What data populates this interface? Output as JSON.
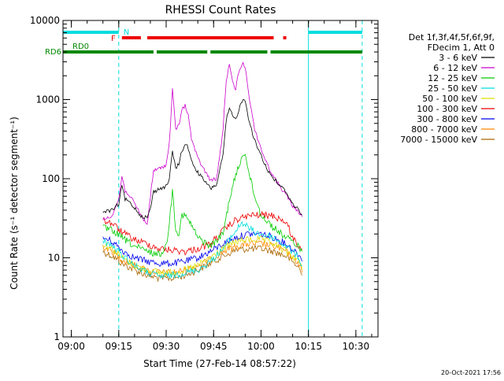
{
  "chart_data": {
    "type": "line",
    "title": "RHESSI Count Rates",
    "xlabel": "Start Time (27-Feb-14 08:57:22)",
    "ylabel": "Count Rate (s⁻¹ detector segment⁻¹)",
    "y_scale": "log",
    "xlim": [
      "08:57:22",
      "10:37:00"
    ],
    "ylim": [
      1,
      10000
    ],
    "x_ticks": [
      "09:00",
      "09:15",
      "09:30",
      "09:45",
      "10:00",
      "10:15",
      "10:30"
    ],
    "y_ticks": [
      "1",
      "10",
      "100",
      "1000",
      "10000"
    ],
    "grid": false,
    "legend": {
      "placement": "right",
      "header": [
        "Det 1f,3f,4f,5f,6f,9f,",
        "FDecim 1, Att 0"
      ]
    },
    "series": [
      {
        "name": "3 - 6 keV",
        "color": "#000000",
        "x": [
          "09:10",
          "09:13",
          "09:15",
          "09:16",
          "09:17",
          "09:18",
          "09:20",
          "09:22",
          "09:24",
          "09:25",
          "09:26",
          "09:28",
          "09:30",
          "09:31",
          "09:32",
          "09:33",
          "09:34",
          "09:35",
          "09:36",
          "09:37",
          "09:38",
          "09:40",
          "09:42",
          "09:44",
          "09:46",
          "09:48",
          "09:49",
          "09:50",
          "09:51",
          "09:52",
          "09:53",
          "09:54",
          "09:55",
          "09:56",
          "09:57",
          "09:58",
          "10:00",
          "10:02",
          "10:04",
          "10:06",
          "10:08",
          "10:10",
          "10:12",
          "10:13"
        ],
        "y": [
          38,
          40,
          48,
          82,
          55,
          52,
          43,
          34,
          32,
          42,
          68,
          75,
          80,
          100,
          220,
          135,
          155,
          225,
          275,
          245,
          165,
          120,
          95,
          75,
          85,
          200,
          540,
          790,
          610,
          560,
          760,
          950,
          1000,
          600,
          420,
          300,
          200,
          130,
          100,
          82,
          68,
          48,
          40,
          35
        ]
      },
      {
        "name": "6 - 12 keV",
        "color": "#cc00cc",
        "x": [
          "09:10",
          "09:13",
          "09:15",
          "09:16",
          "09:17",
          "09:18",
          "09:20",
          "09:22",
          "09:24",
          "09:25",
          "09:26",
          "09:28",
          "09:30",
          "09:31",
          "09:32",
          "09:33",
          "09:34",
          "09:35",
          "09:36",
          "09:37",
          "09:38",
          "09:40",
          "09:42",
          "09:44",
          "09:46",
          "09:48",
          "09:49",
          "09:50",
          "09:51",
          "09:52",
          "09:53",
          "09:54",
          "09:55",
          "09:56",
          "09:57",
          "09:58",
          "10:00",
          "10:02",
          "10:04",
          "10:06",
          "10:08",
          "10:10",
          "10:12",
          "10:13"
        ],
        "y": [
          30,
          35,
          55,
          108,
          70,
          65,
          48,
          35,
          26,
          60,
          125,
          135,
          150,
          280,
          1330,
          420,
          480,
          720,
          860,
          640,
          320,
          180,
          130,
          95,
          100,
          420,
          1800,
          2700,
          1640,
          1360,
          2280,
          2850,
          2650,
          1300,
          700,
          420,
          240,
          150,
          105,
          80,
          62,
          45,
          38,
          33
        ]
      },
      {
        "name": "12 - 25 keV",
        "color": "#00cc00",
        "x": [
          "09:10",
          "09:13",
          "09:16",
          "09:20",
          "09:24",
          "09:28",
          "09:30",
          "09:31",
          "09:32",
          "09:33",
          "09:34",
          "09:35",
          "09:36",
          "09:38",
          "09:40",
          "09:44",
          "09:48",
          "09:50",
          "09:52",
          "09:54",
          "09:55",
          "09:56",
          "09:58",
          "10:00",
          "10:04",
          "10:08",
          "10:12",
          "10:13"
        ],
        "y": [
          24,
          22,
          18,
          14,
          12,
          11,
          14,
          28,
          72,
          24,
          20,
          35,
          34,
          26,
          18,
          14,
          20,
          55,
          110,
          190,
          220,
          125,
          60,
          35,
          24,
          18,
          14,
          12
        ]
      },
      {
        "name": "25 - 50 keV",
        "color": "#00dddd",
        "x": [
          "09:10",
          "09:13",
          "09:16",
          "09:20",
          "09:24",
          "09:28",
          "09:32",
          "09:36",
          "09:40",
          "09:44",
          "09:48",
          "09:52",
          "09:54",
          "09:56",
          "09:58",
          "10:00",
          "10:04",
          "10:08",
          "10:12",
          "10:13"
        ],
        "y": [
          17,
          14,
          11,
          8,
          6.5,
          5.8,
          6,
          6.5,
          7,
          9,
          13,
          22,
          28,
          24,
          21,
          20,
          18,
          14,
          10,
          8
        ]
      },
      {
        "name": "50 - 100 keV",
        "color": "#dddd00",
        "x": [
          "09:10",
          "09:13",
          "09:16",
          "09:20",
          "09:24",
          "09:28",
          "09:32",
          "09:36",
          "09:40",
          "09:44",
          "09:48",
          "09:52",
          "09:56",
          "10:00",
          "10:04",
          "10:08",
          "10:12",
          "10:13"
        ],
        "y": [
          15,
          13,
          10,
          8,
          7,
          6.5,
          6.5,
          7,
          8,
          10,
          13,
          16,
          17,
          17,
          15,
          12,
          9,
          7
        ]
      },
      {
        "name": "100 - 300 keV",
        "color": "#ee0000",
        "x": [
          "09:10",
          "09:13",
          "09:16",
          "09:20",
          "09:24",
          "09:28",
          "09:32",
          "09:36",
          "09:40",
          "09:44",
          "09:48",
          "09:52",
          "09:56",
          "10:00",
          "10:04",
          "10:08",
          "10:10",
          "10:12",
          "10:13"
        ],
        "y": [
          30,
          27,
          21,
          17,
          15,
          13,
          12.5,
          12,
          13,
          15,
          22,
          30,
          34,
          35,
          34,
          28,
          18,
          14,
          13
        ]
      },
      {
        "name": "300 - 800 keV",
        "color": "#0000ee",
        "x": [
          "09:10",
          "09:13",
          "09:16",
          "09:20",
          "09:24",
          "09:28",
          "09:32",
          "09:36",
          "09:40",
          "09:44",
          "09:48",
          "09:52",
          "09:56",
          "10:00",
          "10:04",
          "10:08",
          "10:12",
          "10:13"
        ],
        "y": [
          18,
          16,
          12.5,
          10,
          9,
          8.5,
          8.5,
          9,
          10,
          12,
          15,
          18,
          20,
          20,
          18,
          15,
          11,
          9
        ]
      },
      {
        "name": "800 - 7000 keV",
        "color": "#ff8800",
        "x": [
          "09:10",
          "09:13",
          "09:16",
          "09:20",
          "09:24",
          "09:28",
          "09:32",
          "09:36",
          "09:40",
          "09:44",
          "09:48",
          "09:52",
          "09:56",
          "10:00",
          "10:04",
          "10:08",
          "10:12",
          "10:13"
        ],
        "y": [
          14,
          12,
          9.5,
          8,
          7,
          6.5,
          6.5,
          7,
          8,
          9.5,
          12,
          14,
          15,
          15,
          14,
          12,
          8.5,
          6.5
        ]
      },
      {
        "name": "7000 - 15000 keV",
        "color": "#aa6600",
        "x": [
          "09:10",
          "09:13",
          "09:16",
          "09:20",
          "09:24",
          "09:28",
          "09:32",
          "09:36",
          "09:40",
          "09:44",
          "09:48",
          "09:52",
          "09:56",
          "10:00",
          "10:04",
          "10:08",
          "10:12",
          "10:13"
        ],
        "y": [
          12,
          10.5,
          8.5,
          7,
          6,
          5.5,
          5.5,
          6,
          7,
          8.5,
          10.5,
          12.5,
          13,
          13,
          12,
          10.5,
          7.5,
          6
        ]
      }
    ],
    "annotations": {
      "night": {
        "label": "N",
        "color": "#00dddd",
        "segments": [
          [
            "08:57:22",
            "09:15:00"
          ],
          [
            "10:15:00",
            "10:32:00"
          ]
        ]
      },
      "flare": {
        "label": "F",
        "color": "#ee0000",
        "segments": [
          [
            "09:16:00",
            "09:22:00"
          ],
          [
            "09:24:00",
            "10:04:00"
          ],
          [
            "10:07:00",
            "10:08:00"
          ]
        ]
      },
      "saa": {
        "label": "RD0",
        "label2": "RD6",
        "color": "#008800",
        "segments": [
          [
            "08:57:22",
            "09:15:00"
          ],
          [
            "09:15:00",
            "09:26:00"
          ],
          [
            "09:27:00",
            "09:43:00"
          ],
          [
            "09:44:00",
            "10:02:00"
          ],
          [
            "10:03:00",
            "10:32:00"
          ]
        ]
      },
      "vlines": [
        {
          "x": "08:57:22",
          "color": "#00dddd",
          "style": "solid"
        },
        {
          "x": "09:15:00",
          "color": "#00dddd",
          "style": "dashed"
        },
        {
          "x": "10:15:00",
          "color": "#00dddd",
          "style": "solid"
        },
        {
          "x": "10:32:00",
          "color": "#00dddd",
          "style": "dashed"
        }
      ]
    }
  },
  "footer": {
    "timestamp": "20-Oct-2021 17:56"
  }
}
